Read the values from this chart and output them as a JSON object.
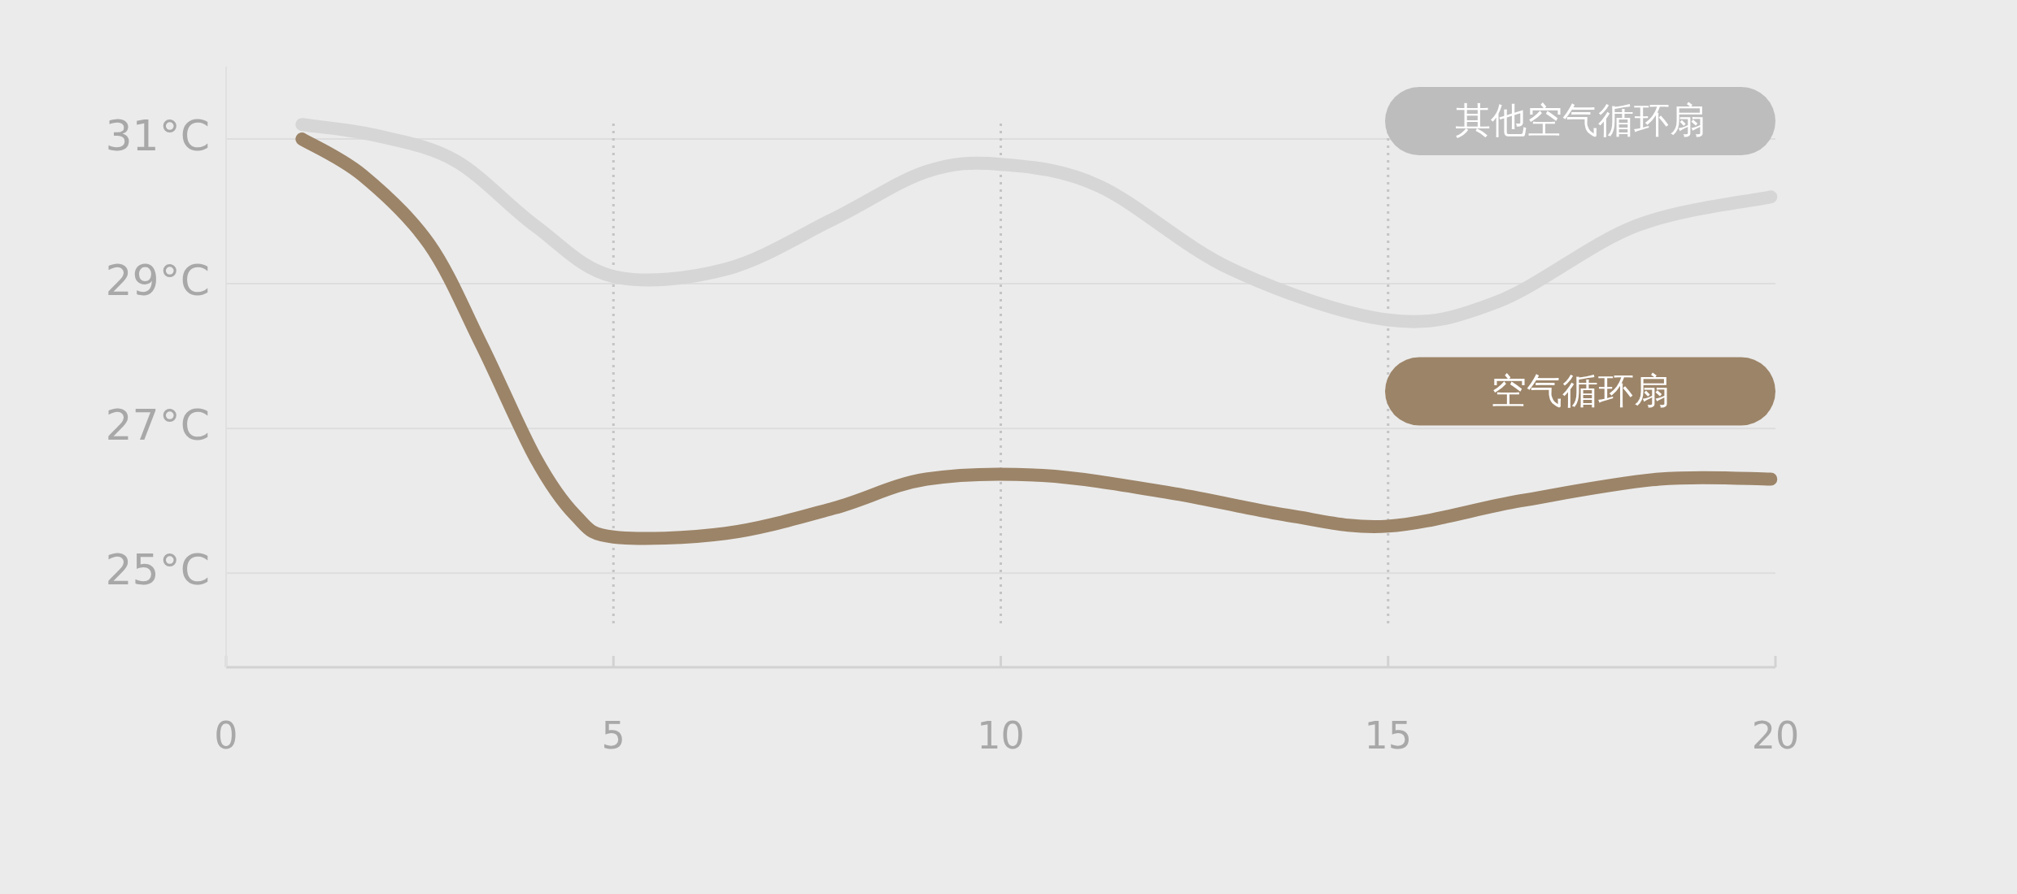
{
  "chart_data": {
    "type": "line",
    "xlim": [
      0,
      20
    ],
    "ylim": [
      23.7,
      32
    ],
    "xticks": [
      0,
      5,
      10,
      15,
      20
    ],
    "yticks": [
      {
        "value": 25,
        "label": "25°C"
      },
      {
        "value": 27,
        "label": "27°C"
      },
      {
        "value": 29,
        "label": "29°C"
      },
      {
        "value": 31,
        "label": "31°C"
      }
    ],
    "grid": "y",
    "line_style": "solid",
    "marker": "none",
    "ref_lines": [
      {
        "axis": "x",
        "value": 5,
        "line_style": "dotted",
        "color": "#c4c4c4"
      },
      {
        "axis": "x",
        "value": 10,
        "line_style": "dotted",
        "color": "#c4c4c4"
      },
      {
        "axis": "x",
        "value": 15,
        "line_style": "dotted",
        "color": "#c4c4c4"
      }
    ],
    "series": [
      {
        "name": "其他空气循环扇",
        "color": "#d6d6d6",
        "x": [
          0.98,
          1.93,
          2.96,
          3.99,
          5,
          6.45,
          7.85,
          9.04,
          10,
          11.27,
          12.98,
          15,
          16.41,
          18.2,
          19.94
        ],
        "values": [
          31.2,
          31.05,
          30.7,
          29.8,
          29.1,
          29.2,
          29.9,
          30.55,
          30.65,
          30.35,
          29.2,
          28.5,
          28.75,
          29.8,
          30.2
        ]
      },
      {
        "name": "空气循环扇",
        "color": "#9c8468",
        "x": [
          0.98,
          1.76,
          2.62,
          3.3,
          3.99,
          4.51,
          5,
          6.45,
          7.85,
          9.04,
          10.54,
          12.24,
          13.7,
          15,
          16.71,
          18.5,
          19.94
        ],
        "values": [
          31.0,
          30.5,
          29.55,
          28.15,
          26.6,
          25.8,
          25.5,
          25.55,
          25.9,
          26.3,
          26.35,
          26.1,
          25.8,
          25.65,
          26.0,
          26.3,
          26.3
        ]
      }
    ]
  }
}
